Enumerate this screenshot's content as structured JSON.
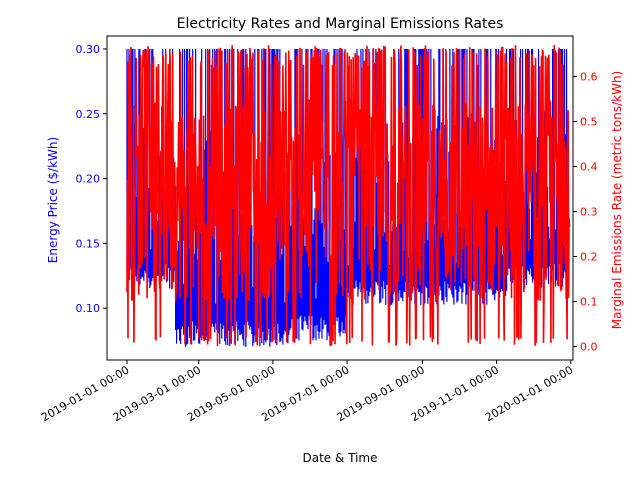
{
  "colors": {
    "price": "#0000ff",
    "emissions": "#ff0000",
    "axis": "#000000",
    "background": "#ffffff"
  },
  "chart_data": {
    "type": "line",
    "title": "Electricity Rates and Marginal Emissions Rates",
    "xlabel": "Date & Time",
    "ylabel_left": "Energy Price ($/kWh)",
    "ylabel_right": "Marginal Emissions Rate (metric tons/kWh)",
    "x_range": [
      "2019-01-01",
      "2019-12-31"
    ],
    "ylim_left": [
      0.06,
      0.31
    ],
    "ylim_right": [
      -0.03,
      0.69
    ],
    "grid": false,
    "legend": "none",
    "x_ticks": [
      {
        "date": "2019-01-01",
        "label": "2019-01-01 00:00"
      },
      {
        "date": "2019-03-01",
        "label": "2019-03-01 00:00"
      },
      {
        "date": "2019-05-01",
        "label": "2019-05-01 00:00"
      },
      {
        "date": "2019-07-01",
        "label": "2019-07-01 00:00"
      },
      {
        "date": "2019-09-01",
        "label": "2019-09-01 00:00"
      },
      {
        "date": "2019-11-01",
        "label": "2019-11-01 00:00"
      },
      {
        "date": "2020-01-01",
        "label": "2020-01-01 00:00"
      }
    ],
    "y_ticks_left": [
      {
        "value": 0.1,
        "label": "0.10"
      },
      {
        "value": 0.15,
        "label": "0.15"
      },
      {
        "value": 0.2,
        "label": "0.20"
      },
      {
        "value": 0.25,
        "label": "0.25"
      },
      {
        "value": 0.3,
        "label": "0.30"
      }
    ],
    "y_ticks_right": [
      {
        "value": 0.0,
        "label": "0.0"
      },
      {
        "value": 0.1,
        "label": "0.1"
      },
      {
        "value": 0.2,
        "label": "0.2"
      },
      {
        "value": 0.3,
        "label": "0.3"
      },
      {
        "value": 0.4,
        "label": "0.4"
      },
      {
        "value": 0.5,
        "label": "0.5"
      },
      {
        "value": 0.6,
        "label": "0.6"
      }
    ],
    "series": [
      {
        "axis": "left",
        "color": "#0000ff",
        "band_periods": [
          {
            "start": "2019-01-01",
            "end": "2019-02-10",
            "min": 0.115,
            "max": 0.3
          },
          {
            "start": "2019-02-10",
            "end": "2019-05-15",
            "min": 0.07,
            "max": 0.3
          },
          {
            "start": "2019-05-15",
            "end": "2019-07-01",
            "min": 0.075,
            "max": 0.3
          },
          {
            "start": "2019-07-01",
            "end": "2019-08-01",
            "min": 0.102,
            "max": 0.3
          },
          {
            "start": "2019-08-01",
            "end": "2019-10-15",
            "min": 0.102,
            "max": 0.3
          },
          {
            "start": "2019-10-15",
            "end": "2019-11-10",
            "min": 0.102,
            "max": 0.3
          },
          {
            "start": "2019-11-10",
            "end": "2019-12-31",
            "min": 0.115,
            "max": 0.3
          }
        ]
      },
      {
        "axis": "right",
        "color": "#ff0000",
        "range_periods": [
          {
            "start": "2019-01-01",
            "end": "2019-02-15",
            "min": 0.0,
            "max": 0.67
          },
          {
            "start": "2019-02-15",
            "end": "2019-07-10",
            "min": 0.0,
            "max": 0.67
          },
          {
            "start": "2019-07-10",
            "end": "2019-12-31",
            "min": 0.0,
            "max": 0.67
          }
        ]
      }
    ]
  }
}
